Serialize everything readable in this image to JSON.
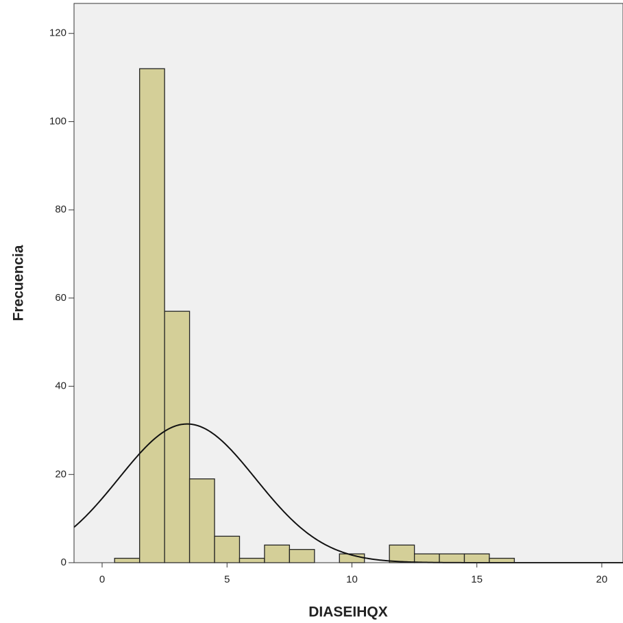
{
  "chart_data": {
    "type": "histogram",
    "xlabel": "DIASEIHQX",
    "ylabel": "Frecuencia",
    "bins": [
      0.5,
      1.5,
      2.5,
      3.5,
      4.5,
      5.5,
      6.5,
      7.5,
      8.5,
      9.5,
      10.5,
      11.5,
      12.5,
      13.5,
      14.5,
      15.5,
      16.5
    ],
    "values": [
      1,
      112,
      57,
      19,
      6,
      1,
      4,
      3,
      0,
      2,
      0,
      4,
      2,
      2,
      2,
      1
    ],
    "color": "#d4cf98",
    "normal_curve": {
      "mean": 3.4,
      "std": 2.74
    },
    "xlim": [
      -1.125,
      20.85
    ],
    "ylim": [
      0,
      126.8
    ],
    "xticks": [
      0,
      5,
      10,
      15,
      20
    ],
    "yticks": [
      0,
      20,
      40,
      60,
      80,
      100,
      120
    ]
  }
}
